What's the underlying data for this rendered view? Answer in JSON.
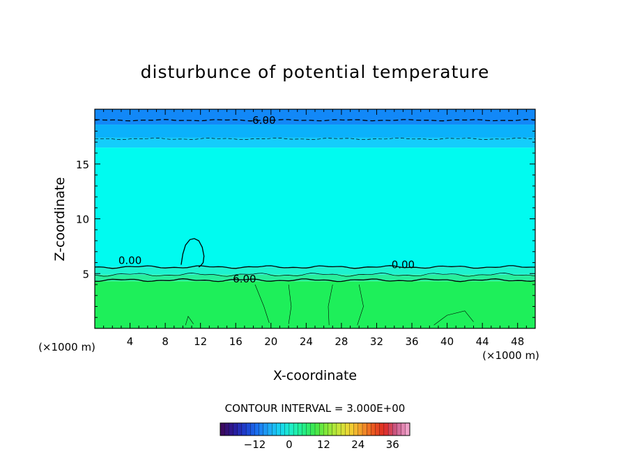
{
  "chart_data": {
    "type": "heatmap",
    "title": "disturbunce of potential temperature",
    "xlabel": "X-coordinate",
    "ylabel": "Z-coordinate",
    "x_unit_left": "(×1000 m)",
    "x_unit_right": "(×1000 m)",
    "xlim": [
      0,
      50
    ],
    "ylim": [
      0,
      20
    ],
    "x_ticks": [
      4,
      8,
      12,
      16,
      20,
      24,
      28,
      32,
      36,
      40,
      44,
      48
    ],
    "y_ticks": [
      5,
      10,
      15
    ],
    "contour_interval_label": "CONTOUR INTERVAL = 3.000E+00",
    "contour_labels": [
      {
        "text": "-6.00",
        "x": 19,
        "z": 19.0
      },
      {
        "text": "0.00",
        "x": 4,
        "z": 6.2
      },
      {
        "text": "0.00",
        "x": 35,
        "z": 5.8
      },
      {
        "text": "6.00",
        "x": 17,
        "z": 4.5
      }
    ],
    "bands": [
      {
        "range": [
          0,
          4.3
        ],
        "value": 7.5,
        "color": "#1eef5a"
      },
      {
        "range": [
          4.3,
          4.9
        ],
        "value": 4.5,
        "color": "#28ee9c"
      },
      {
        "range": [
          4.9,
          5.6
        ],
        "value": 1.5,
        "color": "#1ef2cf"
      },
      {
        "range": [
          5.6,
          16.5
        ],
        "value": 0,
        "color": "#00fbf0"
      },
      {
        "range": [
          16.5,
          17.4
        ],
        "value": -3,
        "color": "#14cdfb"
      },
      {
        "range": [
          17.4,
          18.6
        ],
        "value": -4.5,
        "color": "#0bb1fb"
      },
      {
        "range": [
          18.6,
          20
        ],
        "value": -7.5,
        "color": "#1288f8"
      }
    ],
    "colorbar": {
      "ticks": [
        -12,
        0,
        12,
        24,
        36
      ],
      "min": -24,
      "max": 42,
      "colors": [
        "#3b0a5e",
        "#2a1a9a",
        "#1d3fd0",
        "#1a70f0",
        "#1fa8f5",
        "#17d6f2",
        "#1ef0c4",
        "#22ee88",
        "#3fe84a",
        "#86e838",
        "#c4e63a",
        "#f2d634",
        "#f29a2a",
        "#ea5a20",
        "#e02a24",
        "#c85a8a",
        "#f0a0c8"
      ]
    }
  }
}
